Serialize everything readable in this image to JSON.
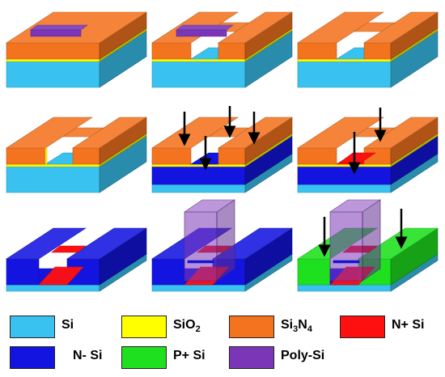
{
  "colors": {
    "si": "#39c2ef",
    "sio2": "#ffff00",
    "si3n4": "#f4731f",
    "nplus": "#ff1010",
    "nminus": "#1414e0",
    "pplus": "#1ee01e",
    "poly": "#7b36b8"
  },
  "panels": [
    {
      "step": 1,
      "layers": [
        "si",
        "sio2",
        "si3n4"
      ],
      "features": [
        "poly-strip"
      ],
      "arrows": 0
    },
    {
      "step": 2,
      "layers": [
        "si",
        "sio2",
        "si3n4"
      ],
      "features": [
        "poly-strip",
        "trench"
      ],
      "arrows": 0
    },
    {
      "step": 3,
      "layers": [
        "si",
        "sio2",
        "si3n4"
      ],
      "features": [
        "trench"
      ],
      "arrows": 0
    },
    {
      "step": 4,
      "layers": [
        "si",
        "sio2",
        "si3n4"
      ],
      "features": [
        "trench",
        "oxide-lined"
      ],
      "arrows": 0
    },
    {
      "step": 5,
      "layers": [
        "si",
        "n-si",
        "sio2",
        "si3n4"
      ],
      "features": [
        "trench",
        "n-implant"
      ],
      "arrows": 4
    },
    {
      "step": 6,
      "layers": [
        "si",
        "n-si",
        "sio2",
        "si3n4"
      ],
      "features": [
        "trench",
        "n+-region"
      ],
      "arrows": 2
    },
    {
      "step": 7,
      "layers": [
        "si",
        "n-si"
      ],
      "features": [
        "n+-bridge"
      ],
      "arrows": 0
    },
    {
      "step": 8,
      "layers": [
        "si",
        "n-si"
      ],
      "features": [
        "n+-bridge",
        "poly-gate"
      ],
      "arrows": 0
    },
    {
      "step": 9,
      "layers": [
        "si",
        "n-si",
        "p+-si"
      ],
      "features": [
        "n+-bridge",
        "poly-gate"
      ],
      "arrows": 2
    }
  ],
  "legend": [
    {
      "key": "si",
      "label": "Si",
      "sub": "",
      "label2": "",
      "sub2": ""
    },
    {
      "key": "sio2",
      "label": "SiO",
      "sub": "2",
      "label2": "",
      "sub2": ""
    },
    {
      "key": "si3n4",
      "label": "Si",
      "sub": "3",
      "label2": "N",
      "sub2": "4"
    },
    {
      "key": "nplus",
      "label": "N+ Si",
      "sub": "",
      "label2": "",
      "sub2": ""
    },
    {
      "key": "nminus",
      "label": "N- Si",
      "sub": "",
      "label2": "",
      "sub2": ""
    },
    {
      "key": "pplus",
      "label": "P+ Si",
      "sub": "",
      "label2": "",
      "sub2": ""
    },
    {
      "key": "poly",
      "label": "Poly-Si",
      "sub": "",
      "label2": "",
      "sub2": ""
    }
  ]
}
